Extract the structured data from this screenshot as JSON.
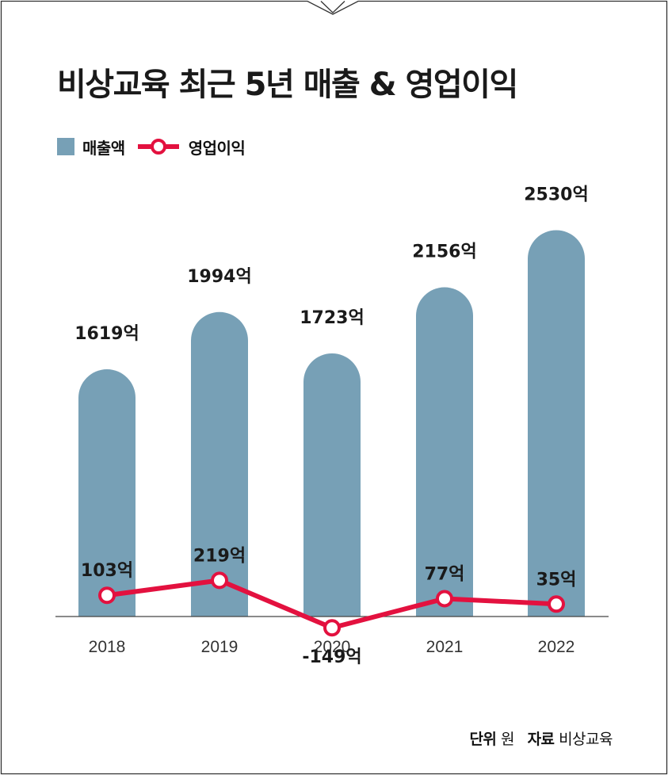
{
  "title": "비상교육 최근 5년 매출 & 영업이익",
  "legend": {
    "bar_label": "매출액",
    "line_label": "영업이익"
  },
  "footer": {
    "unit_key": "단위",
    "unit_value": "원",
    "source_key": "자료",
    "source_value": "비상교육"
  },
  "colors": {
    "bar": "#77a0b6",
    "line": "#e3113f",
    "frame": "#333333"
  },
  "chart_data": {
    "type": "bar",
    "categories": [
      "2018",
      "2019",
      "2020",
      "2021",
      "2022"
    ],
    "series": [
      {
        "name": "매출액",
        "type": "bar",
        "values": [
          1619,
          1994,
          1723,
          2156,
          2530
        ],
        "labels": [
          "1619억",
          "1994억",
          "1723억",
          "2156억",
          "2530억"
        ]
      },
      {
        "name": "영업이익",
        "type": "line",
        "values": [
          103,
          219,
          -149,
          77,
          35
        ],
        "labels": [
          "103억",
          "219억",
          "-149억",
          "77억",
          "35억"
        ]
      }
    ]
  }
}
